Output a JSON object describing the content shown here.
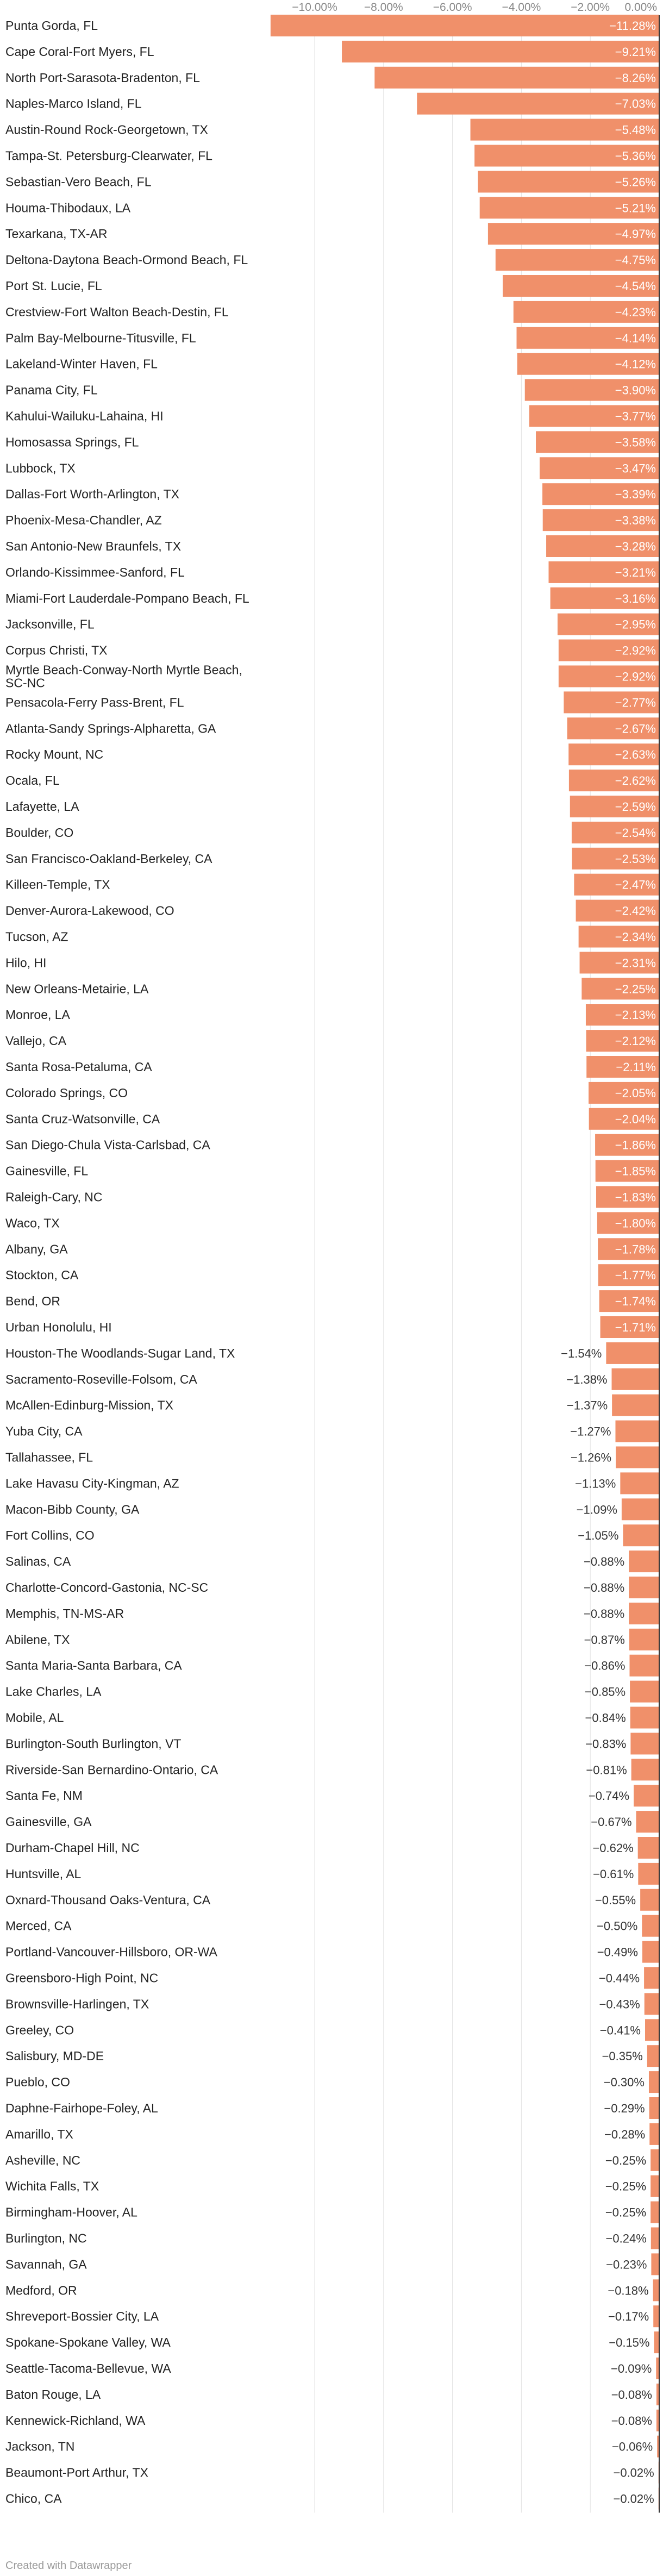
{
  "colors": {
    "bar": "#f0906a",
    "grid": "#e2e2e2",
    "zero_line": "#333333"
  },
  "footer": "Created with Datawrapper",
  "chart_data": {
    "type": "bar",
    "orientation": "horizontal",
    "title": "",
    "xlabel": "",
    "ylabel": "",
    "xlim": [
      -11.28,
      0
    ],
    "x_ticks": [
      {
        "value": -10,
        "label": "−10.00%"
      },
      {
        "value": -8,
        "label": "−8.00%"
      },
      {
        "value": -6,
        "label": "−6.00%"
      },
      {
        "value": -4,
        "label": "−4.00%"
      },
      {
        "value": -2,
        "label": "−2.00%"
      },
      {
        "value": 0,
        "label": "0.00%"
      }
    ],
    "categories": [
      "Punta Gorda, FL",
      "Cape Coral-Fort Myers, FL",
      "North Port-Sarasota-Bradenton, FL",
      "Naples-Marco Island, FL",
      "Austin-Round Rock-Georgetown, TX",
      "Tampa-St. Petersburg-Clearwater, FL",
      "Sebastian-Vero Beach, FL",
      "Houma-Thibodaux, LA",
      "Texarkana, TX-AR",
      "Deltona-Daytona Beach-Ormond Beach, FL",
      "Port St. Lucie, FL",
      "Crestview-Fort Walton Beach-Destin, FL",
      "Palm Bay-Melbourne-Titusville, FL",
      "Lakeland-Winter Haven, FL",
      "Panama City, FL",
      "Kahului-Wailuku-Lahaina, HI",
      "Homosassa Springs, FL",
      "Lubbock, TX",
      "Dallas-Fort Worth-Arlington, TX",
      "Phoenix-Mesa-Chandler, AZ",
      "San Antonio-New Braunfels, TX",
      "Orlando-Kissimmee-Sanford, FL",
      "Miami-Fort Lauderdale-Pompano Beach, FL",
      "Jacksonville, FL",
      "Corpus Christi, TX",
      "Myrtle Beach-Conway-North Myrtle Beach, SC-NC",
      "Pensacola-Ferry Pass-Brent, FL",
      "Atlanta-Sandy Springs-Alpharetta, GA",
      "Rocky Mount, NC",
      "Ocala, FL",
      "Lafayette, LA",
      "Boulder, CO",
      "San Francisco-Oakland-Berkeley, CA",
      "Killeen-Temple, TX",
      "Denver-Aurora-Lakewood, CO",
      "Tucson, AZ",
      "Hilo, HI",
      "New Orleans-Metairie, LA",
      "Monroe, LA",
      "Vallejo, CA",
      "Santa Rosa-Petaluma, CA",
      "Colorado Springs, CO",
      "Santa Cruz-Watsonville, CA",
      "San Diego-Chula Vista-Carlsbad, CA",
      "Gainesville, FL",
      "Raleigh-Cary, NC",
      "Waco, TX",
      "Albany, GA",
      "Stockton, CA",
      "Bend, OR",
      "Urban Honolulu, HI",
      "Houston-The Woodlands-Sugar Land, TX",
      "Sacramento-Roseville-Folsom, CA",
      "McAllen-Edinburg-Mission, TX",
      "Yuba City, CA",
      "Tallahassee, FL",
      "Lake Havasu City-Kingman, AZ",
      "Macon-Bibb County, GA",
      "Fort Collins, CO",
      "Salinas, CA",
      "Charlotte-Concord-Gastonia, NC-SC",
      "Memphis, TN-MS-AR",
      "Abilene, TX",
      "Santa Maria-Santa Barbara, CA",
      "Lake Charles, LA",
      "Mobile, AL",
      "Burlington-South Burlington, VT",
      "Riverside-San Bernardino-Ontario, CA",
      "Santa Fe, NM",
      "Gainesville, GA",
      "Durham-Chapel Hill, NC",
      "Huntsville, AL",
      "Oxnard-Thousand Oaks-Ventura, CA",
      "Merced, CA",
      "Portland-Vancouver-Hillsboro, OR-WA",
      "Greensboro-High Point, NC",
      "Brownsville-Harlingen, TX",
      "Greeley, CO",
      "Salisbury, MD-DE",
      "Pueblo, CO",
      "Daphne-Fairhope-Foley, AL",
      "Amarillo, TX",
      "Asheville, NC",
      "Wichita Falls, TX",
      "Birmingham-Hoover, AL",
      "Burlington, NC",
      "Savannah, GA",
      "Medford, OR",
      "Shreveport-Bossier City, LA",
      "Spokane-Spokane Valley, WA",
      "Seattle-Tacoma-Bellevue, WA",
      "Baton Rouge, LA",
      "Kennewick-Richland, WA",
      "Jackson, TN",
      "Beaumont-Port Arthur, TX",
      "Chico, CA"
    ],
    "values": [
      -11.28,
      -9.21,
      -8.26,
      -7.03,
      -5.48,
      -5.36,
      -5.26,
      -5.21,
      -4.97,
      -4.75,
      -4.54,
      -4.23,
      -4.14,
      -4.12,
      -3.9,
      -3.77,
      -3.58,
      -3.47,
      -3.39,
      -3.38,
      -3.28,
      -3.21,
      -3.16,
      -2.95,
      -2.92,
      -2.92,
      -2.77,
      -2.67,
      -2.63,
      -2.62,
      -2.59,
      -2.54,
      -2.53,
      -2.47,
      -2.42,
      -2.34,
      -2.31,
      -2.25,
      -2.13,
      -2.12,
      -2.11,
      -2.05,
      -2.04,
      -1.86,
      -1.85,
      -1.83,
      -1.8,
      -1.78,
      -1.77,
      -1.74,
      -1.71,
      -1.54,
      -1.38,
      -1.37,
      -1.27,
      -1.26,
      -1.13,
      -1.09,
      -1.05,
      -0.88,
      -0.88,
      -0.88,
      -0.87,
      -0.86,
      -0.85,
      -0.84,
      -0.83,
      -0.81,
      -0.74,
      -0.67,
      -0.62,
      -0.61,
      -0.55,
      -0.5,
      -0.49,
      -0.44,
      -0.43,
      -0.41,
      -0.35,
      -0.3,
      -0.29,
      -0.28,
      -0.25,
      -0.25,
      -0.25,
      -0.24,
      -0.23,
      -0.18,
      -0.17,
      -0.15,
      -0.09,
      -0.08,
      -0.08,
      -0.06,
      -0.02,
      -0.02
    ],
    "value_labels": [
      "−11.28%",
      "−9.21%",
      "−8.26%",
      "−7.03%",
      "−5.48%",
      "−5.36%",
      "−5.26%",
      "−5.21%",
      "−4.97%",
      "−4.75%",
      "−4.54%",
      "−4.23%",
      "−4.14%",
      "−4.12%",
      "−3.90%",
      "−3.77%",
      "−3.58%",
      "−3.47%",
      "−3.39%",
      "−3.38%",
      "−3.28%",
      "−3.21%",
      "−3.16%",
      "−2.95%",
      "−2.92%",
      "−2.92%",
      "−2.77%",
      "−2.67%",
      "−2.63%",
      "−2.62%",
      "−2.59%",
      "−2.54%",
      "−2.53%",
      "−2.47%",
      "−2.42%",
      "−2.34%",
      "−2.31%",
      "−2.25%",
      "−2.13%",
      "−2.12%",
      "−2.11%",
      "−2.05%",
      "−2.04%",
      "−1.86%",
      "−1.85%",
      "−1.83%",
      "−1.80%",
      "−1.78%",
      "−1.77%",
      "−1.74%",
      "−1.71%",
      "−1.54%",
      "−1.38%",
      "−1.37%",
      "−1.27%",
      "−1.26%",
      "−1.13%",
      "−1.09%",
      "−1.05%",
      "−0.88%",
      "−0.88%",
      "−0.88%",
      "−0.87%",
      "−0.86%",
      "−0.85%",
      "−0.84%",
      "−0.83%",
      "−0.81%",
      "−0.74%",
      "−0.67%",
      "−0.62%",
      "−0.61%",
      "−0.55%",
      "−0.50%",
      "−0.49%",
      "−0.44%",
      "−0.43%",
      "−0.41%",
      "−0.35%",
      "−0.30%",
      "−0.29%",
      "−0.28%",
      "−0.25%",
      "−0.25%",
      "−0.25%",
      "−0.24%",
      "−0.23%",
      "−0.18%",
      "−0.17%",
      "−0.15%",
      "−0.09%",
      "−0.08%",
      "−0.08%",
      "−0.06%",
      "−0.02%",
      "−0.02%"
    ]
  }
}
